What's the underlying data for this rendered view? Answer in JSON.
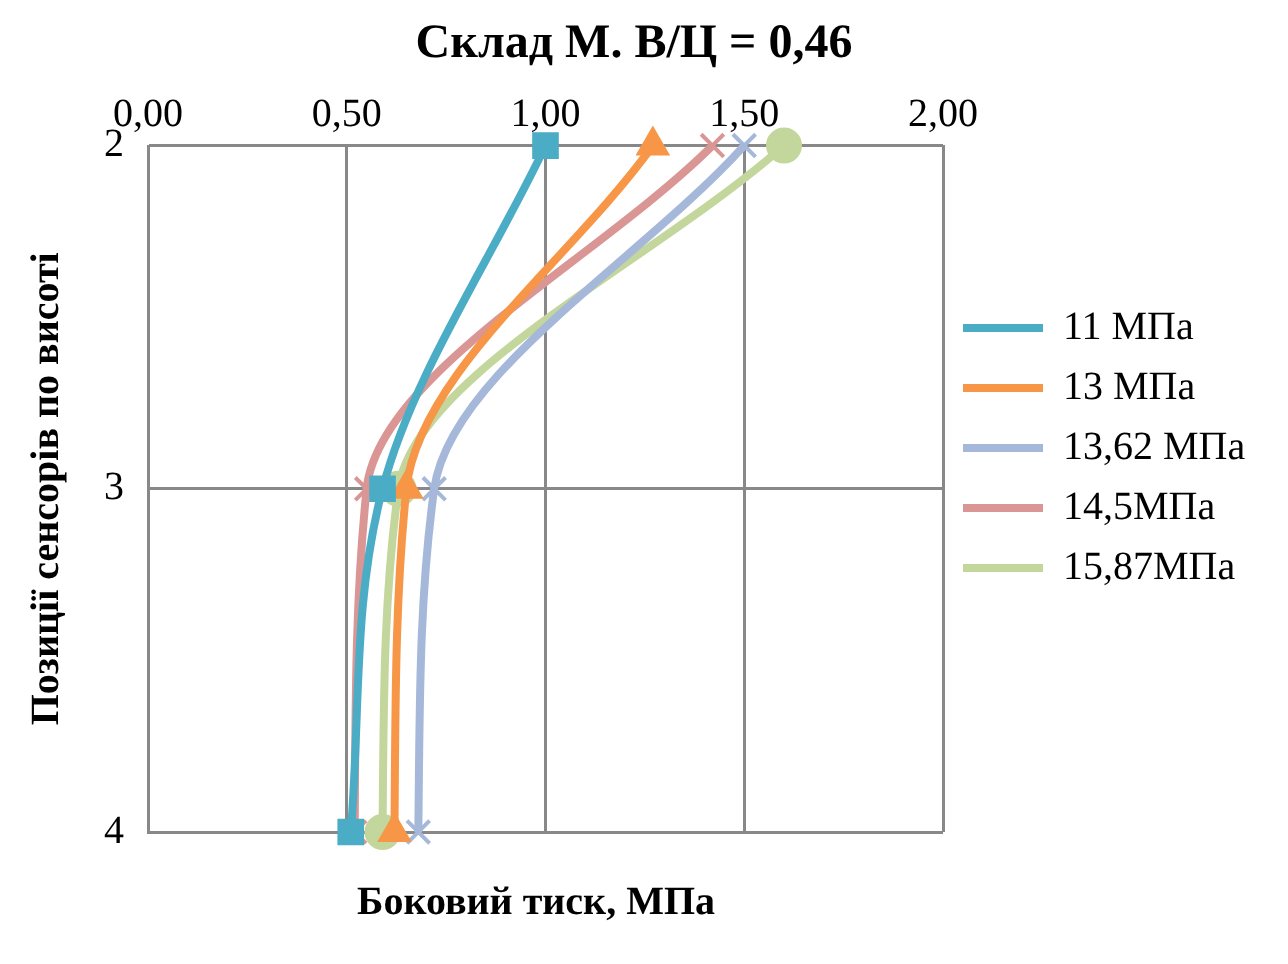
{
  "chart_data": {
    "type": "line",
    "title": "Склад М. В/Ц = 0,46",
    "xlabel": "Боковий тиск, МПа",
    "ylabel": "Позиції сенсорів по висоті",
    "xlim": [
      0,
      2
    ],
    "xticks": [
      {
        "value": 0,
        "label": "0,00"
      },
      {
        "value": 0.5,
        "label": "0,50"
      },
      {
        "value": 1,
        "label": "1,00"
      },
      {
        "value": 1.5,
        "label": "1,50"
      },
      {
        "value": 2,
        "label": "2,00"
      }
    ],
    "ylim": [
      4,
      2
    ],
    "yticks": [
      2,
      3,
      4
    ],
    "grid": true,
    "legend": "right",
    "series": [
      {
        "name": "11 МПа",
        "color": "#4bacc6",
        "marker": "square",
        "x": [
          1.0,
          0.59,
          0.51
        ],
        "values": [
          2,
          3,
          4
        ]
      },
      {
        "name": "13 МПа",
        "color": "#f79646",
        "marker": "triangle",
        "x": [
          1.27,
          0.65,
          0.62
        ],
        "values": [
          2,
          3,
          4
        ]
      },
      {
        "name": "13,62 МПа",
        "color": "#a5b8da",
        "marker": "cross",
        "x": [
          1.5,
          0.72,
          0.68
        ],
        "values": [
          2,
          3,
          4
        ]
      },
      {
        "name": "14,5МПа",
        "color": "#d99694",
        "marker": "cross",
        "x": [
          1.42,
          0.55,
          0.52
        ],
        "values": [
          2,
          3,
          4
        ]
      },
      {
        "name": "15,87МПа",
        "color": "#c3d69b",
        "marker": "circle",
        "x": [
          1.6,
          0.63,
          0.59
        ],
        "values": [
          2,
          3,
          4
        ]
      }
    ]
  }
}
